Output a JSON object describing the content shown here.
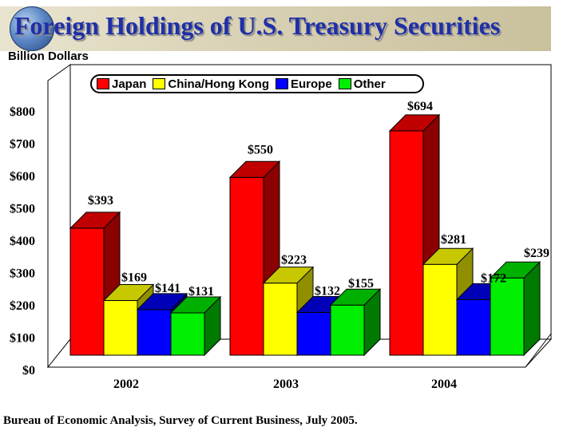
{
  "header": {
    "title": "Foreign Holdings of U.S. Treasury Securities",
    "unit_label": "Billion Dollars"
  },
  "source": "Bureau of Economic Analysis, Survey of Current Business, July 2005.",
  "chart_data": {
    "type": "bar",
    "title": "Foreign Holdings of U.S. Treasury Securities",
    "ylabel": "Billion Dollars",
    "xlabel": "",
    "ylim": [
      0,
      800
    ],
    "yticks": [
      "$0",
      "$100",
      "$200",
      "$300",
      "$400",
      "$500",
      "$600",
      "$700",
      "$800"
    ],
    "categories": [
      "2002",
      "2003",
      "2004"
    ],
    "series": [
      {
        "name": "Japan",
        "color": "#ff0000",
        "side": "#8b0000",
        "top": "#c00000",
        "values": [
          393,
          550,
          694
        ],
        "labels": [
          "$393",
          "$550",
          "$694"
        ]
      },
      {
        "name": "China/Hong Kong",
        "color": "#ffff00",
        "side": "#8f8f00",
        "top": "#c8c800",
        "values": [
          169,
          223,
          281
        ],
        "labels": [
          "$169",
          "$223",
          "$281"
        ]
      },
      {
        "name": "Europe",
        "color": "#0000ff",
        "side": "#000080",
        "top": "#0000b8",
        "values": [
          141,
          132,
          172
        ],
        "labels": [
          "$141",
          "$132",
          "$172"
        ]
      },
      {
        "name": "Other",
        "color": "#00ee00",
        "side": "#007a00",
        "top": "#00b000",
        "values": [
          131,
          155,
          239
        ],
        "labels": [
          "$131",
          "$155",
          "$239"
        ]
      }
    ],
    "legend_position": "top"
  }
}
